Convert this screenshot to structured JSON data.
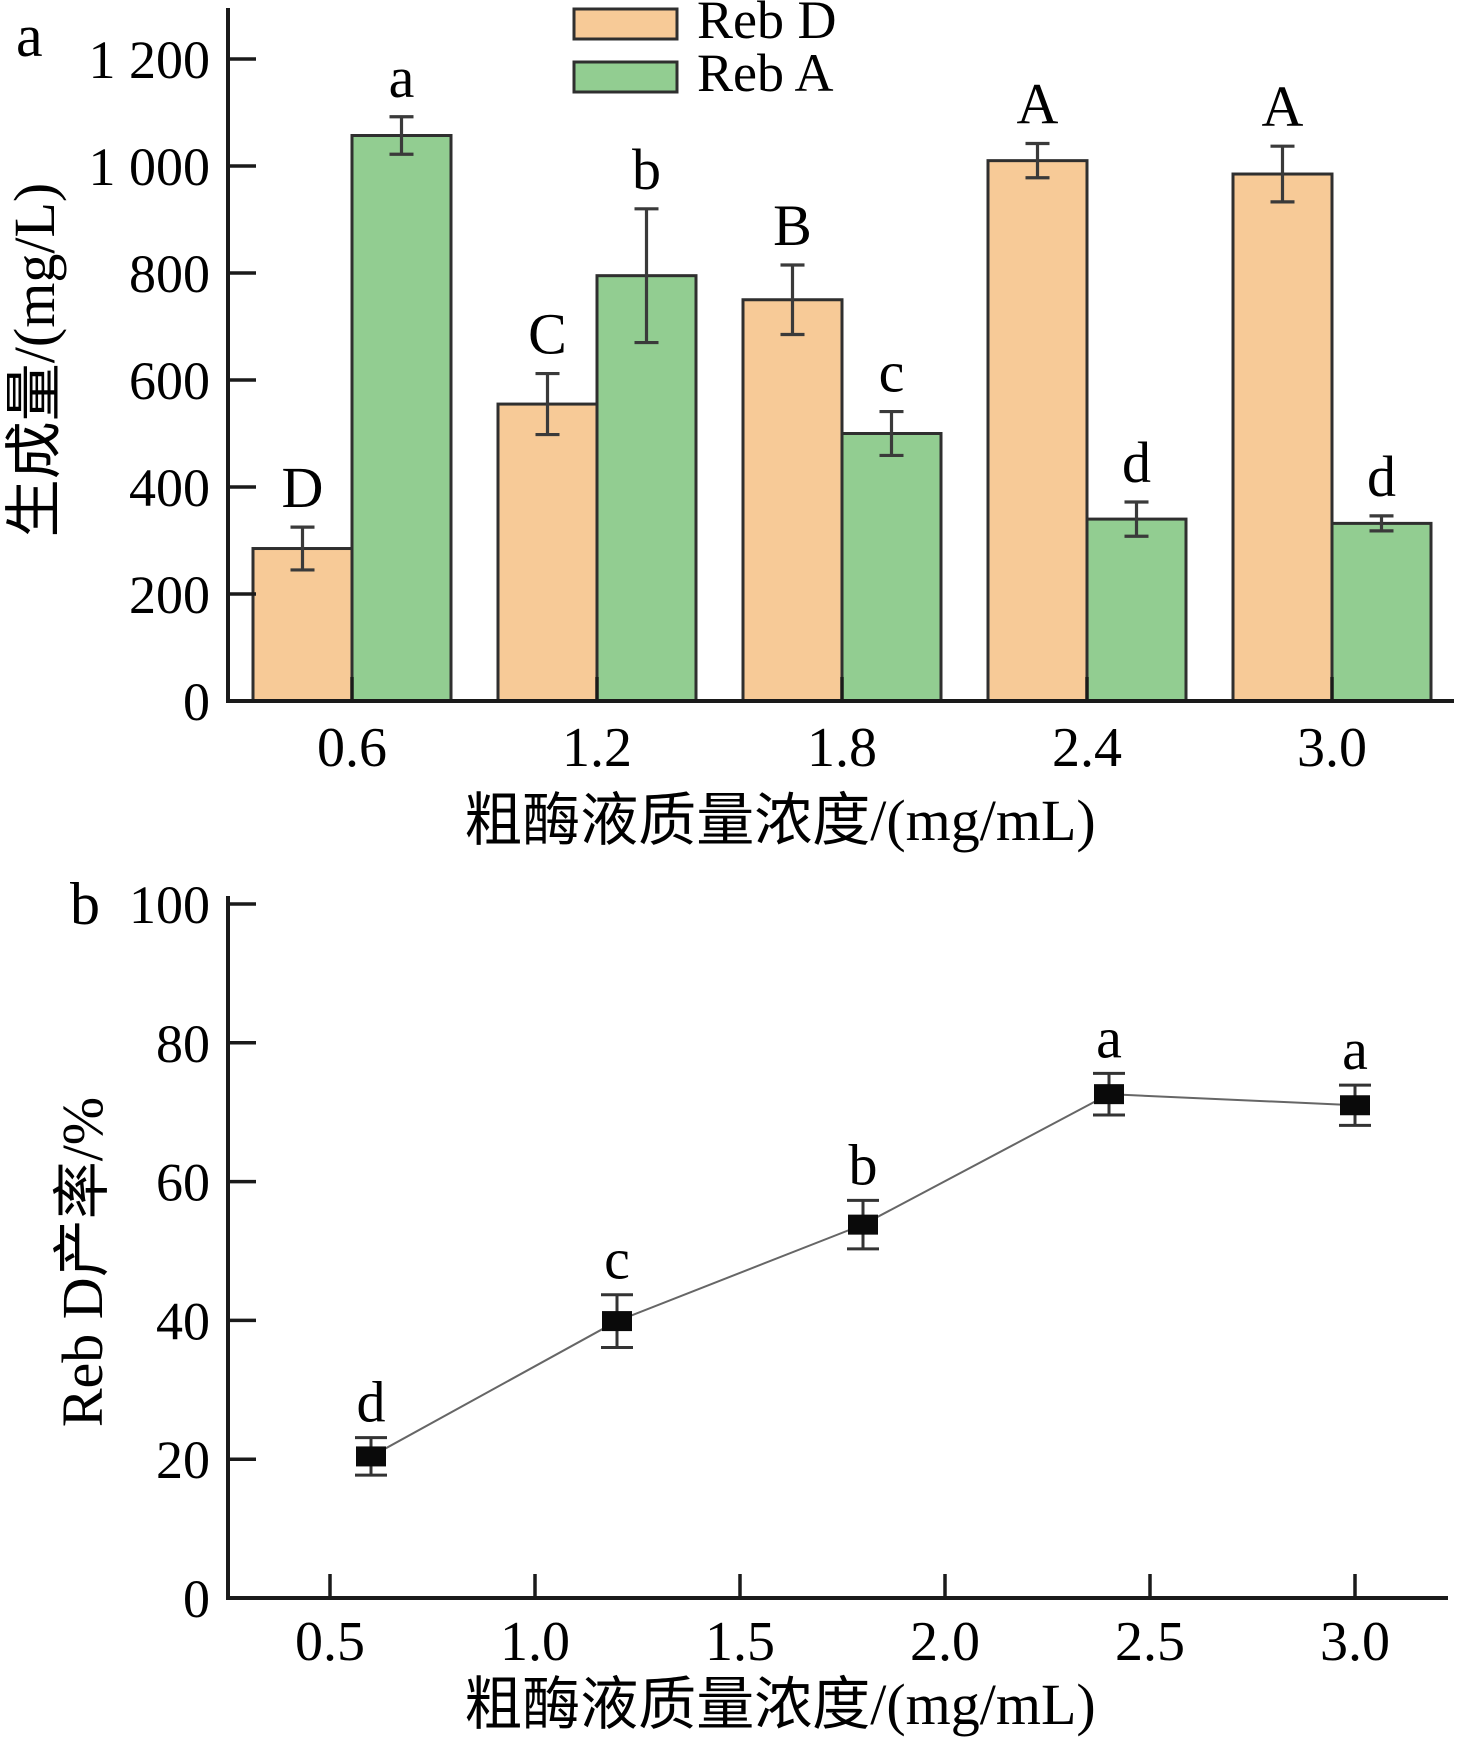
{
  "page": {
    "background": "#ffffff"
  },
  "chart_data": [
    {
      "id": "panel_a",
      "panel_label": "a",
      "type": "bar",
      "xlabel": "粗酶液质量浓度/(mg/mL)",
      "ylabel": "生成量/(mg/L)",
      "categories": [
        "0.6",
        "1.2",
        "1.8",
        "2.4",
        "3.0"
      ],
      "ylim": [
        0,
        1290
      ],
      "yticks": [
        0,
        200,
        400,
        600,
        800,
        1000,
        1200
      ],
      "ytick_labels": [
        "0",
        "200",
        "400",
        "600",
        "800",
        "1 000",
        "1 200"
      ],
      "grid": false,
      "legend_position": "top-center",
      "series": [
        {
          "name": "Reb D",
          "color": "#F7CA97",
          "edge_color": "#2f2f2f",
          "values": [
            285,
            555,
            750,
            1010,
            985
          ],
          "errors": [
            40,
            57,
            65,
            32,
            52
          ],
          "sig_letters": [
            "D",
            "C",
            "B",
            "A",
            "A"
          ]
        },
        {
          "name": "Reb A",
          "color": "#92CD91",
          "edge_color": "#2f2f2f",
          "values": [
            1057,
            795,
            500,
            340,
            332
          ],
          "errors": [
            35,
            125,
            41,
            32,
            14
          ],
          "sig_letters": [
            "a",
            "b",
            "c",
            "d",
            "d"
          ]
        }
      ]
    },
    {
      "id": "panel_b",
      "panel_label": "b",
      "type": "line",
      "xlabel": "粗酶液质量浓度/(mg/mL)",
      "ylabel": "Reb D产率/%",
      "x": [
        0.6,
        1.2,
        1.8,
        2.4,
        3.0
      ],
      "values": [
        20.4,
        39.9,
        53.8,
        72.6,
        71.0
      ],
      "errors": [
        2.7,
        3.8,
        3.5,
        3.0,
        2.9
      ],
      "sig_letters": [
        "d",
        "c",
        "b",
        "a",
        "a"
      ],
      "xlim": [
        0.25,
        3.25
      ],
      "ylim": [
        0,
        100
      ],
      "xticks": [
        0.5,
        1.0,
        1.5,
        2.0,
        2.5,
        3.0
      ],
      "xtick_labels": [
        "0.5",
        "1.0",
        "1.5",
        "2.0",
        "2.5",
        "3.0"
      ],
      "yticks": [
        0,
        20,
        40,
        60,
        80,
        100
      ],
      "ytick_labels": [
        "0",
        "20",
        "40",
        "60",
        "80",
        "100"
      ],
      "marker": {
        "shape": "square",
        "color": "#0a0a0a",
        "width": 30,
        "height": 20
      },
      "line_color": "#666666",
      "error_color": "#333333",
      "grid": false
    }
  ]
}
